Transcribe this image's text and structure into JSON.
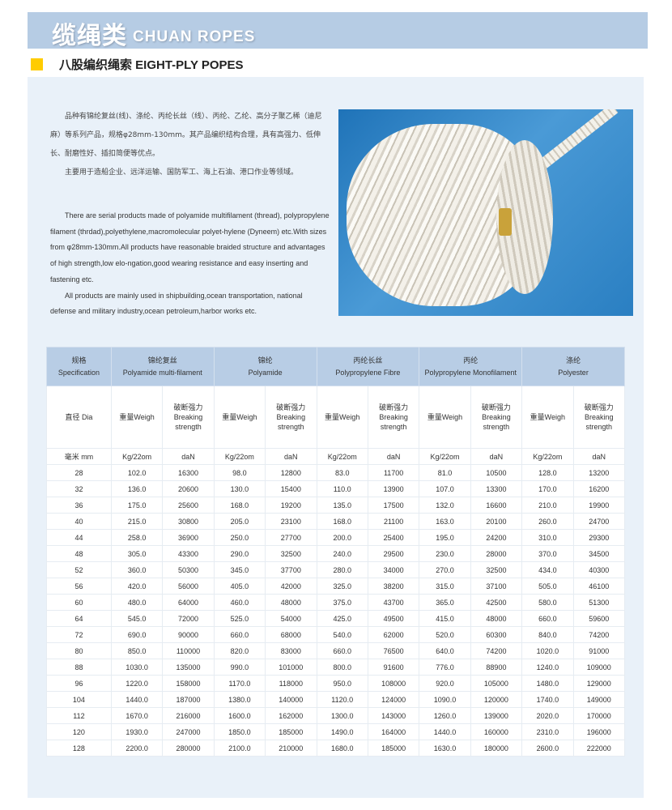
{
  "header": {
    "title_cn": "缆绳类",
    "title_en": "CHUAN ROPES"
  },
  "section": {
    "title": "八股编织绳索 EIGHT-PLY POPES",
    "accent_color": "#ffcc00"
  },
  "intro_cn": [
    "品种有锦纶复丝(线)、涤纶、丙纶长丝（线）、丙纶、乙纶、高分子聚乙稀（迪尼麻）等系列产品，规格φ28mm-130mm。其产品编织结构合理，具有高强力、低伸长、耐磨性好、插扣简便等优点。",
    "主要用于造船企业、远洋运输、国防军工、海上石油、港口作业等领域。"
  ],
  "intro_en": [
    "There are serial products made of polyamide multifilament (thread), polypropylene filament (thrdad),polyethylene,macromolecular polyet-hylene (Dyneem) etc.With sizes from φ28mm-130mm.All products have reasonable braided structure and advantages of high strength,low elo-ngation,good wearing resistance and easy  inserting and fastening etc.",
    "All products are mainly used in shipbuilding,ocean transportation, national defense and military industry,ocean petroleum,harbor works etc."
  ],
  "photo": {
    "subject": "eight-ply braided rope coil"
  },
  "table": {
    "spec": {
      "cn": "规格",
      "en": "Specification"
    },
    "groups": [
      {
        "cn": "锦纶复丝",
        "en": "Polyamide multi-filament"
      },
      {
        "cn": "锦纶",
        "en": "Polyamide"
      },
      {
        "cn": "丙纶长丝",
        "en": "Polypropylene Fibre"
      },
      {
        "cn": "丙纶",
        "en": "Polypropylene Monofilament"
      },
      {
        "cn": "涤纶",
        "en": "Polyester"
      }
    ],
    "dia_label": "直径 Dia",
    "weight_label": "重量Weigh",
    "strength_cn": "破断强力",
    "strength_en1": "Breaking",
    "strength_en2": "strength",
    "unit_dia": "毫米 mm",
    "unit_weight": "Kg/22om",
    "unit_strength": "daN",
    "rows": [
      [
        "28",
        "102.0",
        "16300",
        "98.0",
        "12800",
        "83.0",
        "11700",
        "81.0",
        "10500",
        "128.0",
        "13200"
      ],
      [
        "32",
        "136.0",
        "20600",
        "130.0",
        "15400",
        "110.0",
        "13900",
        "107.0",
        "13300",
        "170.0",
        "16200"
      ],
      [
        "36",
        "175.0",
        "25600",
        "168.0",
        "19200",
        "135.0",
        "17500",
        "132.0",
        "16600",
        "210.0",
        "19900"
      ],
      [
        "40",
        "215.0",
        "30800",
        "205.0",
        "23100",
        "168.0",
        "21100",
        "163.0",
        "20100",
        "260.0",
        "24700"
      ],
      [
        "44",
        "258.0",
        "36900",
        "250.0",
        "27700",
        "200.0",
        "25400",
        "195.0",
        "24200",
        "310.0",
        "29300"
      ],
      [
        "48",
        "305.0",
        "43300",
        "290.0",
        "32500",
        "240.0",
        "29500",
        "230.0",
        "28000",
        "370.0",
        "34500"
      ],
      [
        "52",
        "360.0",
        "50300",
        "345.0",
        "37700",
        "280.0",
        "34000",
        "270.0",
        "32500",
        "434.0",
        "40300"
      ],
      [
        "56",
        "420.0",
        "56000",
        "405.0",
        "42000",
        "325.0",
        "38200",
        "315.0",
        "37100",
        "505.0",
        "46100"
      ],
      [
        "60",
        "480.0",
        "64000",
        "460.0",
        "48000",
        "375.0",
        "43700",
        "365.0",
        "42500",
        "580.0",
        "51300"
      ],
      [
        "64",
        "545.0",
        "72000",
        "525.0",
        "54000",
        "425.0",
        "49500",
        "415.0",
        "48000",
        "660.0",
        "59600"
      ],
      [
        "72",
        "690.0",
        "90000",
        "660.0",
        "68000",
        "540.0",
        "62000",
        "520.0",
        "60300",
        "840.0",
        "74200"
      ],
      [
        "80",
        "850.0",
        "110000",
        "820.0",
        "83000",
        "660.0",
        "76500",
        "640.0",
        "74200",
        "1020.0",
        "91000"
      ],
      [
        "88",
        "1030.0",
        "135000",
        "990.0",
        "101000",
        "800.0",
        "91600",
        "776.0",
        "88900",
        "1240.0",
        "109000"
      ],
      [
        "96",
        "1220.0",
        "158000",
        "1170.0",
        "118000",
        "950.0",
        "108000",
        "920.0",
        "105000",
        "1480.0",
        "129000"
      ],
      [
        "104",
        "1440.0",
        "187000",
        "1380.0",
        "140000",
        "1120.0",
        "124000",
        "1090.0",
        "120000",
        "1740.0",
        "149000"
      ],
      [
        "112",
        "1670.0",
        "216000",
        "1600.0",
        "162000",
        "1300.0",
        "143000",
        "1260.0",
        "139000",
        "2020.0",
        "170000"
      ],
      [
        "120",
        "1930.0",
        "247000",
        "1850.0",
        "185000",
        "1490.0",
        "164000",
        "1440.0",
        "160000",
        "2310.0",
        "196000"
      ],
      [
        "128",
        "2200.0",
        "280000",
        "2100.0",
        "210000",
        "1680.0",
        "185000",
        "1630.0",
        "180000",
        "2600.0",
        "222000"
      ]
    ]
  }
}
